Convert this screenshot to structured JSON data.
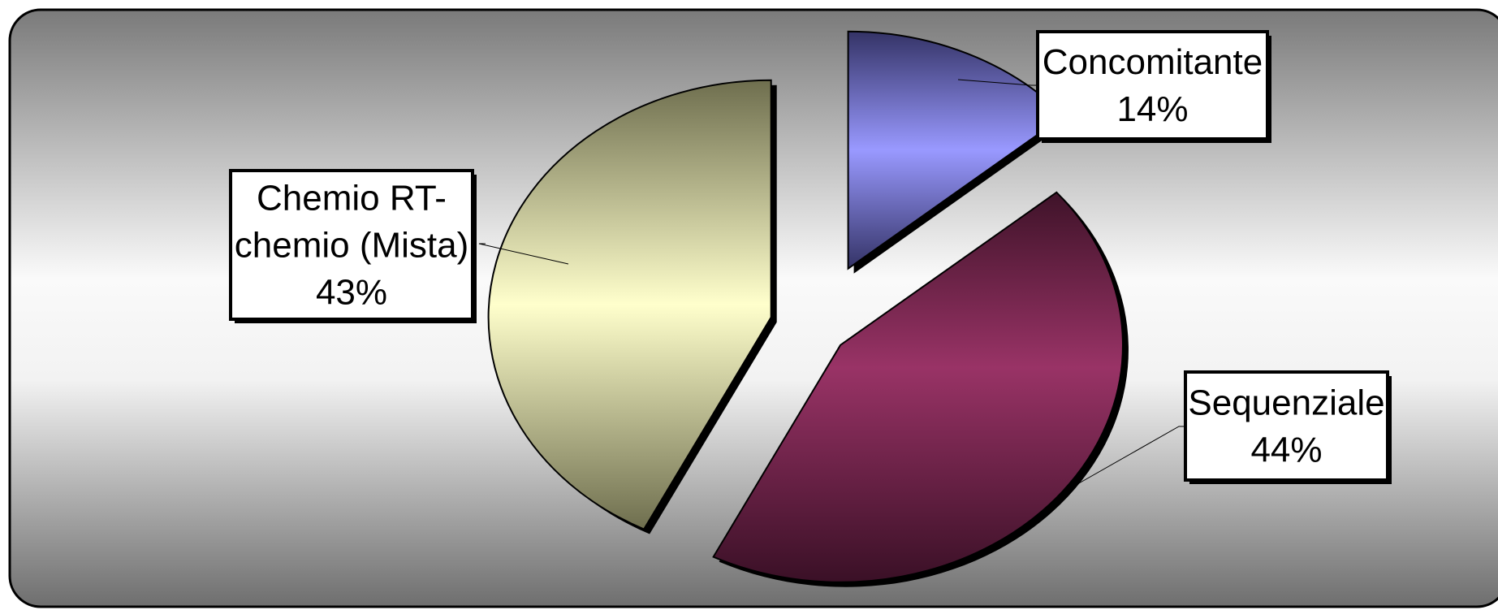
{
  "chart_data": {
    "type": "pie",
    "exploded": true,
    "slices": [
      {
        "name": "Concomitante",
        "value": 14,
        "label": "14%",
        "color": "#9999ff"
      },
      {
        "name": "Sequenziale",
        "value": 44,
        "label": "44%",
        "color": "#993366"
      },
      {
        "name": "Chemio RT-chemio (Mista)",
        "value": 43,
        "label": "43%",
        "color": "#ffffcc"
      }
    ],
    "slice_label_lines": [
      [
        "Concomitante"
      ],
      [
        "Sequenziale"
      ],
      [
        "Chemio RT-",
        "chemio (Mista)"
      ]
    ],
    "background": "gray-gradient",
    "legend": "none"
  }
}
